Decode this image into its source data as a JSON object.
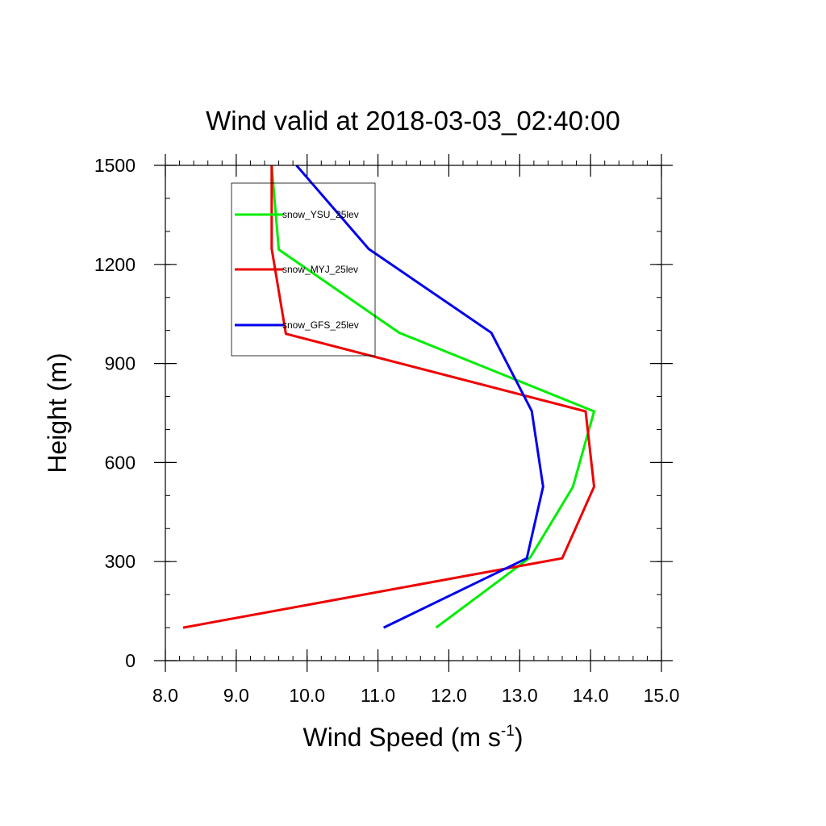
{
  "chart_data": {
    "type": "line",
    "title": "Wind valid at 2018-03-03_02:40:00",
    "xlabel": "Wind Speed (m s",
    "xlabel_superscript": "-1",
    "xlabel_suffix": ")",
    "ylabel": "Height (m)",
    "xlim": [
      8.0,
      15.0
    ],
    "ylim": [
      0,
      1500
    ],
    "x_ticks": [
      8.0,
      9.0,
      10.0,
      11.0,
      12.0,
      13.0,
      14.0,
      15.0
    ],
    "x_tick_labels": [
      "8.0",
      "9.0",
      "10.0",
      "11.0",
      "12.0",
      "13.0",
      "14.0",
      "15.0"
    ],
    "y_ticks": [
      0,
      300,
      600,
      900,
      1200,
      1500
    ],
    "y_tick_labels": [
      "0",
      "300",
      "600",
      "900",
      "1200",
      "1500"
    ],
    "x_minor_step": 0.2,
    "y_minor_step": 100,
    "grid": false,
    "legend_position": "top-left",
    "series": [
      {
        "name": "snow_YSU_25lev",
        "color": "#00ee00",
        "x": [
          11.82,
          13.15,
          13.75,
          14.05,
          11.3,
          9.6,
          9.5
        ],
        "y": [
          100,
          313,
          526,
          755,
          993,
          1245,
          1500
        ]
      },
      {
        "name": "snow_MYJ_25lev",
        "color": "#ee0000",
        "x": [
          8.25,
          13.6,
          14.05,
          13.93,
          9.7,
          9.5,
          9.5
        ],
        "y": [
          100,
          310,
          527,
          755,
          990,
          1248,
          1500
        ]
      },
      {
        "name": "snow_GFS_25lev",
        "color": "#0000ee",
        "x": [
          11.08,
          13.1,
          13.33,
          13.17,
          12.6,
          10.87,
          9.85
        ],
        "y": [
          100,
          310,
          527,
          756,
          993,
          1247,
          1500
        ]
      }
    ]
  }
}
